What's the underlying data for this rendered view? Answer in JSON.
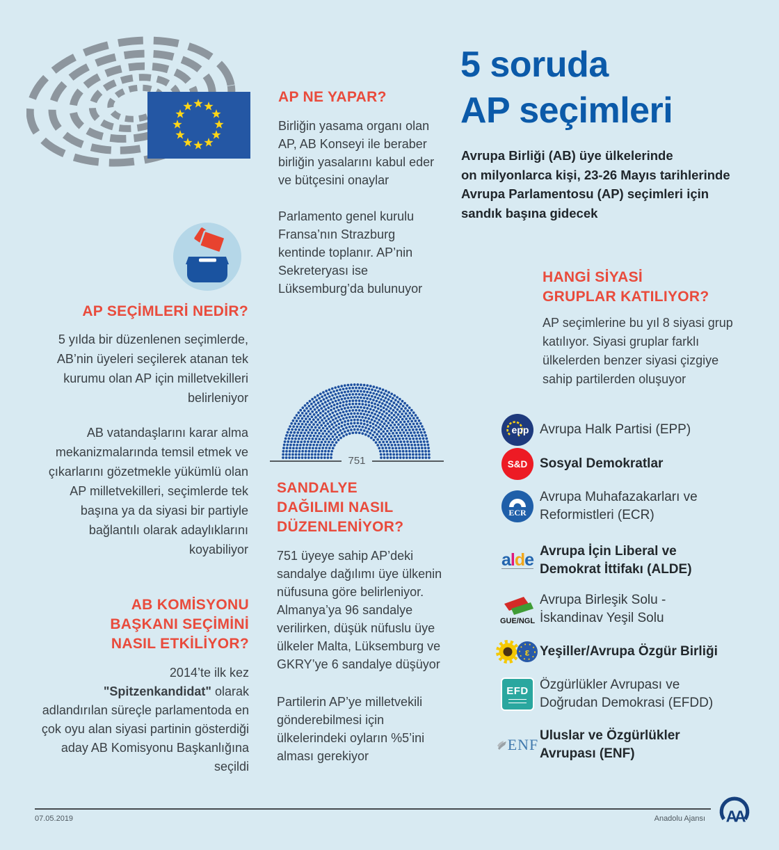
{
  "colors": {
    "background": "#d8eaf2",
    "title_blue": "#0b5aa9",
    "heading_red": "#e94b3c",
    "body_text": "#3a4045",
    "seat_dot": "#1d4f9f",
    "eu_flag_blue": "#2457a4",
    "star_yellow": "#ffd617"
  },
  "title": {
    "text": "5 soruda\nAP seçimleri"
  },
  "intro": {
    "text": "Avrupa Birliği (AB) üye ülkelerinde\non milyonlarca kişi, 23-26 Mayıs tarihlerinde\nAvrupa Parlamentosu (AP) seçimleri için\nsandık başına gidecek"
  },
  "sections": {
    "what_does": {
      "heading": "AP NE YAPAR?",
      "p1": "Birliğin yasama organı olan AP, AB Konseyi ile beraber birliğin yasalarını kabul eder ve bütçesini onaylar",
      "p2": "Parlamento genel kurulu Fransa’nın Strazburg kentinde toplanır. AP’nin Sekreteryası ise Lüksemburg’da bulunuyor"
    },
    "what_is": {
      "heading": "AP SEÇİMLERİ NEDİR?",
      "p1": "5 yılda bir düzenlenen seçimlerde, AB’nin üyeleri seçilerek atanan tek kurumu olan AP için milletvekilleri belirleniyor",
      "p2": "AB vatandaşlarını karar alma mekanizmalarında temsil etmek ve çıkarlarını gözetmekle yükümlü olan AP milletvekilleri, seçimlerde tek başına ya da siyasi bir partiyle bağlantılı olarak adaylıklarını koyabiliyor"
    },
    "seats": {
      "heading": "SANDALYE\nDAĞILIMI NASIL\nDÜZENLENİYOR?",
      "p1": "751 üyeye sahip AP’deki sandalye dağılımı üye ülkenin nüfusuna göre belirleniyor. Almanya’ya 96 sandalye verilirken, düşük nüfuslu üye ülkeler Malta, Lüksemburg ve GKRY’ye 6 sandalye düşüyor",
      "p2": "Partilerin AP’ye milletvekili gönderebilmesi için ülkelerindeki oyların %5’ini alması gerekiyor"
    },
    "commission": {
      "heading": "AB KOMİSYONU\nBAŞKANI SEÇİMİNİ\nNASIL ETKİLİYOR?",
      "p_pre": "2014’te ilk kez\n",
      "p_bold": "\"Spitzenkandidat\"",
      "p_post": " olarak adlandırılan süreçle parlamentoda en çok oyu alan siyasi partinin gösterdiği aday AB Komisyonu Başkanlığına seçildi"
    },
    "groups": {
      "heading": "HANGİ SİYASİ\nGRUPLAR KATILIYOR?",
      "p": "AP seçimlerine bu yıl 8 siyasi grup katılıyor. Siyasi gruplar farklı ülkelerden benzer siyasi çizgiye sahip partilerden oluşuyor"
    }
  },
  "parties": [
    {
      "abbr": "EPP",
      "logo_text": "epp",
      "label": "Avrupa Halk Partisi (EPP)",
      "bold": false
    },
    {
      "abbr": "S&D",
      "logo_text": "S&D",
      "label": "Sosyal Demokratlar",
      "bold": true
    },
    {
      "abbr": "ECR",
      "logo_text": "ECR",
      "label": "Avrupa Muhafazakarları ve\nReformistleri (ECR)",
      "bold": false
    },
    {
      "abbr": "ALDE",
      "logo_text": "alde",
      "logo_letters": [
        "a",
        "l",
        "d",
        "e"
      ],
      "label": "Avrupa İçin Liberal ve\nDemokrat İttifakı (ALDE)",
      "bold": true
    },
    {
      "abbr": "GUE/NGL",
      "logo_text": "GUE/NGL",
      "label": "Avrupa Birleşik Solu -\nİskandinav Yeşil Solu",
      "bold": false
    },
    {
      "abbr": "Greens/EFA",
      "logo_text": "",
      "label": "Yeşiller/Avrupa Özgür Birliği",
      "bold": true
    },
    {
      "abbr": "EFDD",
      "logo_text": "EFD",
      "label": "Özgürlükler Avrupası ve\nDoğrudan Demokrasi (EFDD)",
      "bold": false
    },
    {
      "abbr": "ENF",
      "logo_text": "ENF",
      "label": "Uluslar ve Özgürlükler\nAvrupası (ENF)",
      "bold": true
    }
  ],
  "chart_data": {
    "type": "seat-diagram",
    "title": "Avrupa Parlamentosu sandalye sayısı",
    "total_seats": 751,
    "label": "751",
    "rows": 16,
    "seat_color": "#1d4f9f"
  },
  "eu_flag": {
    "stars": 12
  },
  "footer": {
    "date": "07.05.2019",
    "agency": "Anadolu Ajansı"
  }
}
